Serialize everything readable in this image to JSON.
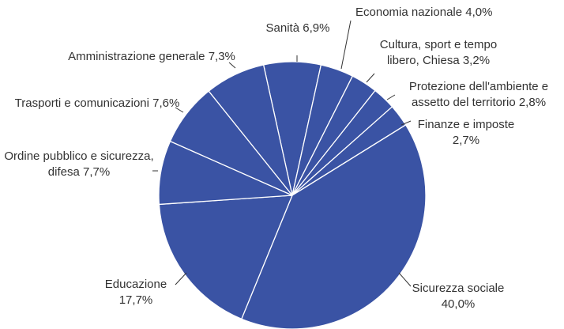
{
  "chart_data": {
    "type": "pie",
    "categories": [
      "Sanità",
      "Economia nazionale",
      "Cultura, sport e tempo libero, Chiesa",
      "Protezione dell'ambiente e assetto del territorio",
      "Finanze e imposte",
      "Sicurezza sociale",
      "Educazione",
      "Ordine pubblico e sicurezza, difesa",
      "Trasporti e comunicazioni",
      "Amministrazione generale"
    ],
    "values": [
      6.9,
      4.0,
      3.2,
      2.8,
      2.7,
      40.0,
      17.7,
      7.7,
      7.6,
      7.3
    ],
    "value_labels": [
      "6,9%",
      "4,0%",
      "3,2%",
      "2,8%",
      "2,7%",
      "40,0%",
      "17,7%",
      "7,7%",
      "7,6%",
      "7,3%"
    ],
    "color": "#3a53a4"
  }
}
